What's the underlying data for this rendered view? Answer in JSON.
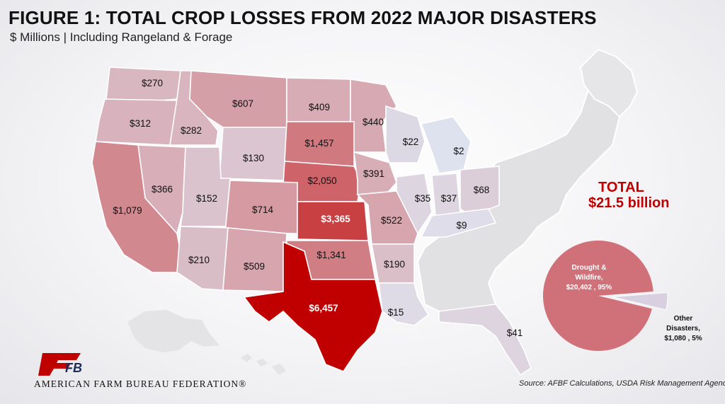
{
  "title": "FIGURE 1: TOTAL CROP LOSSES FROM 2022 MAJOR DISASTERS",
  "subtitle": "$ Millions | Including Rangeland & Forage",
  "total": {
    "label": "TOTAL",
    "value": "$21.5 billion"
  },
  "source": "Source: AFBF Calculations, USDA Risk Management Agency",
  "logo": {
    "text": "American Farm Bureau Federation®",
    "mark": "FB"
  },
  "colors": {
    "title": "#111111",
    "accent": "#c00000",
    "high": "#c00000",
    "low": "#dfe6f2",
    "pie_main": "#d07078",
    "pie_other": "#d8cfe0"
  },
  "chart_data": [
    {
      "type": "choropleth",
      "title": "Total crop losses from 2022 major disasters",
      "unit": "$ Millions",
      "states": [
        {
          "state": "Washington",
          "value": 270,
          "label": "$270"
        },
        {
          "state": "Oregon",
          "value": 312,
          "label": "$312"
        },
        {
          "state": "Idaho",
          "value": 282,
          "label": "$282"
        },
        {
          "state": "Montana",
          "value": 607,
          "label": "$607"
        },
        {
          "state": "North Dakota",
          "value": 409,
          "label": "$409"
        },
        {
          "state": "Minnesota",
          "value": 440,
          "label": "$440"
        },
        {
          "state": "Wyoming",
          "value": 130,
          "label": "$130"
        },
        {
          "state": "South Dakota",
          "value": 1457,
          "label": "$1,457"
        },
        {
          "state": "Wisconsin",
          "value": 22,
          "label": "$22"
        },
        {
          "state": "Michigan",
          "value": 2,
          "label": "$2"
        },
        {
          "state": "Nevada",
          "value": 366,
          "label": "$366"
        },
        {
          "state": "Nebraska",
          "value": 2050,
          "label": "$2,050"
        },
        {
          "state": "Iowa",
          "value": 391,
          "label": "$391"
        },
        {
          "state": "Utah",
          "value": 152,
          "label": "$152"
        },
        {
          "state": "California",
          "value": 1079,
          "label": "$1,079"
        },
        {
          "state": "Colorado",
          "value": 714,
          "label": "$714"
        },
        {
          "state": "Kansas",
          "value": 3365,
          "label": "$3,365"
        },
        {
          "state": "Illinois",
          "value": 35,
          "label": "$35"
        },
        {
          "state": "Indiana",
          "value": 37,
          "label": "$37"
        },
        {
          "state": "Ohio",
          "value": 68,
          "label": "$68"
        },
        {
          "state": "Missouri",
          "value": 522,
          "label": "$522"
        },
        {
          "state": "Kentucky",
          "value": 9,
          "label": "$9"
        },
        {
          "state": "Arizona",
          "value": 210,
          "label": "$210"
        },
        {
          "state": "New Mexico",
          "value": 509,
          "label": "$509"
        },
        {
          "state": "Oklahoma",
          "value": 1341,
          "label": "$1,341"
        },
        {
          "state": "Arkansas",
          "value": 190,
          "label": "$190"
        },
        {
          "state": "Texas",
          "value": 6457,
          "label": "$6,457"
        },
        {
          "state": "Louisiana",
          "value": 15,
          "label": "$15"
        },
        {
          "state": "Florida",
          "value": 41,
          "label": "$41"
        }
      ]
    },
    {
      "type": "pie",
      "title": "TOTAL $21.5 billion",
      "slices": [
        {
          "name": "Drought & Wildfire",
          "value": 20402,
          "percent": 95,
          "lines": [
            "Drought &",
            "Wildfire,",
            "$20,402 , 95%"
          ]
        },
        {
          "name": "Other Disasters",
          "value": 1080,
          "percent": 5,
          "lines": [
            "Other",
            "Disasters,",
            "$1,080 , 5%"
          ]
        }
      ]
    }
  ]
}
